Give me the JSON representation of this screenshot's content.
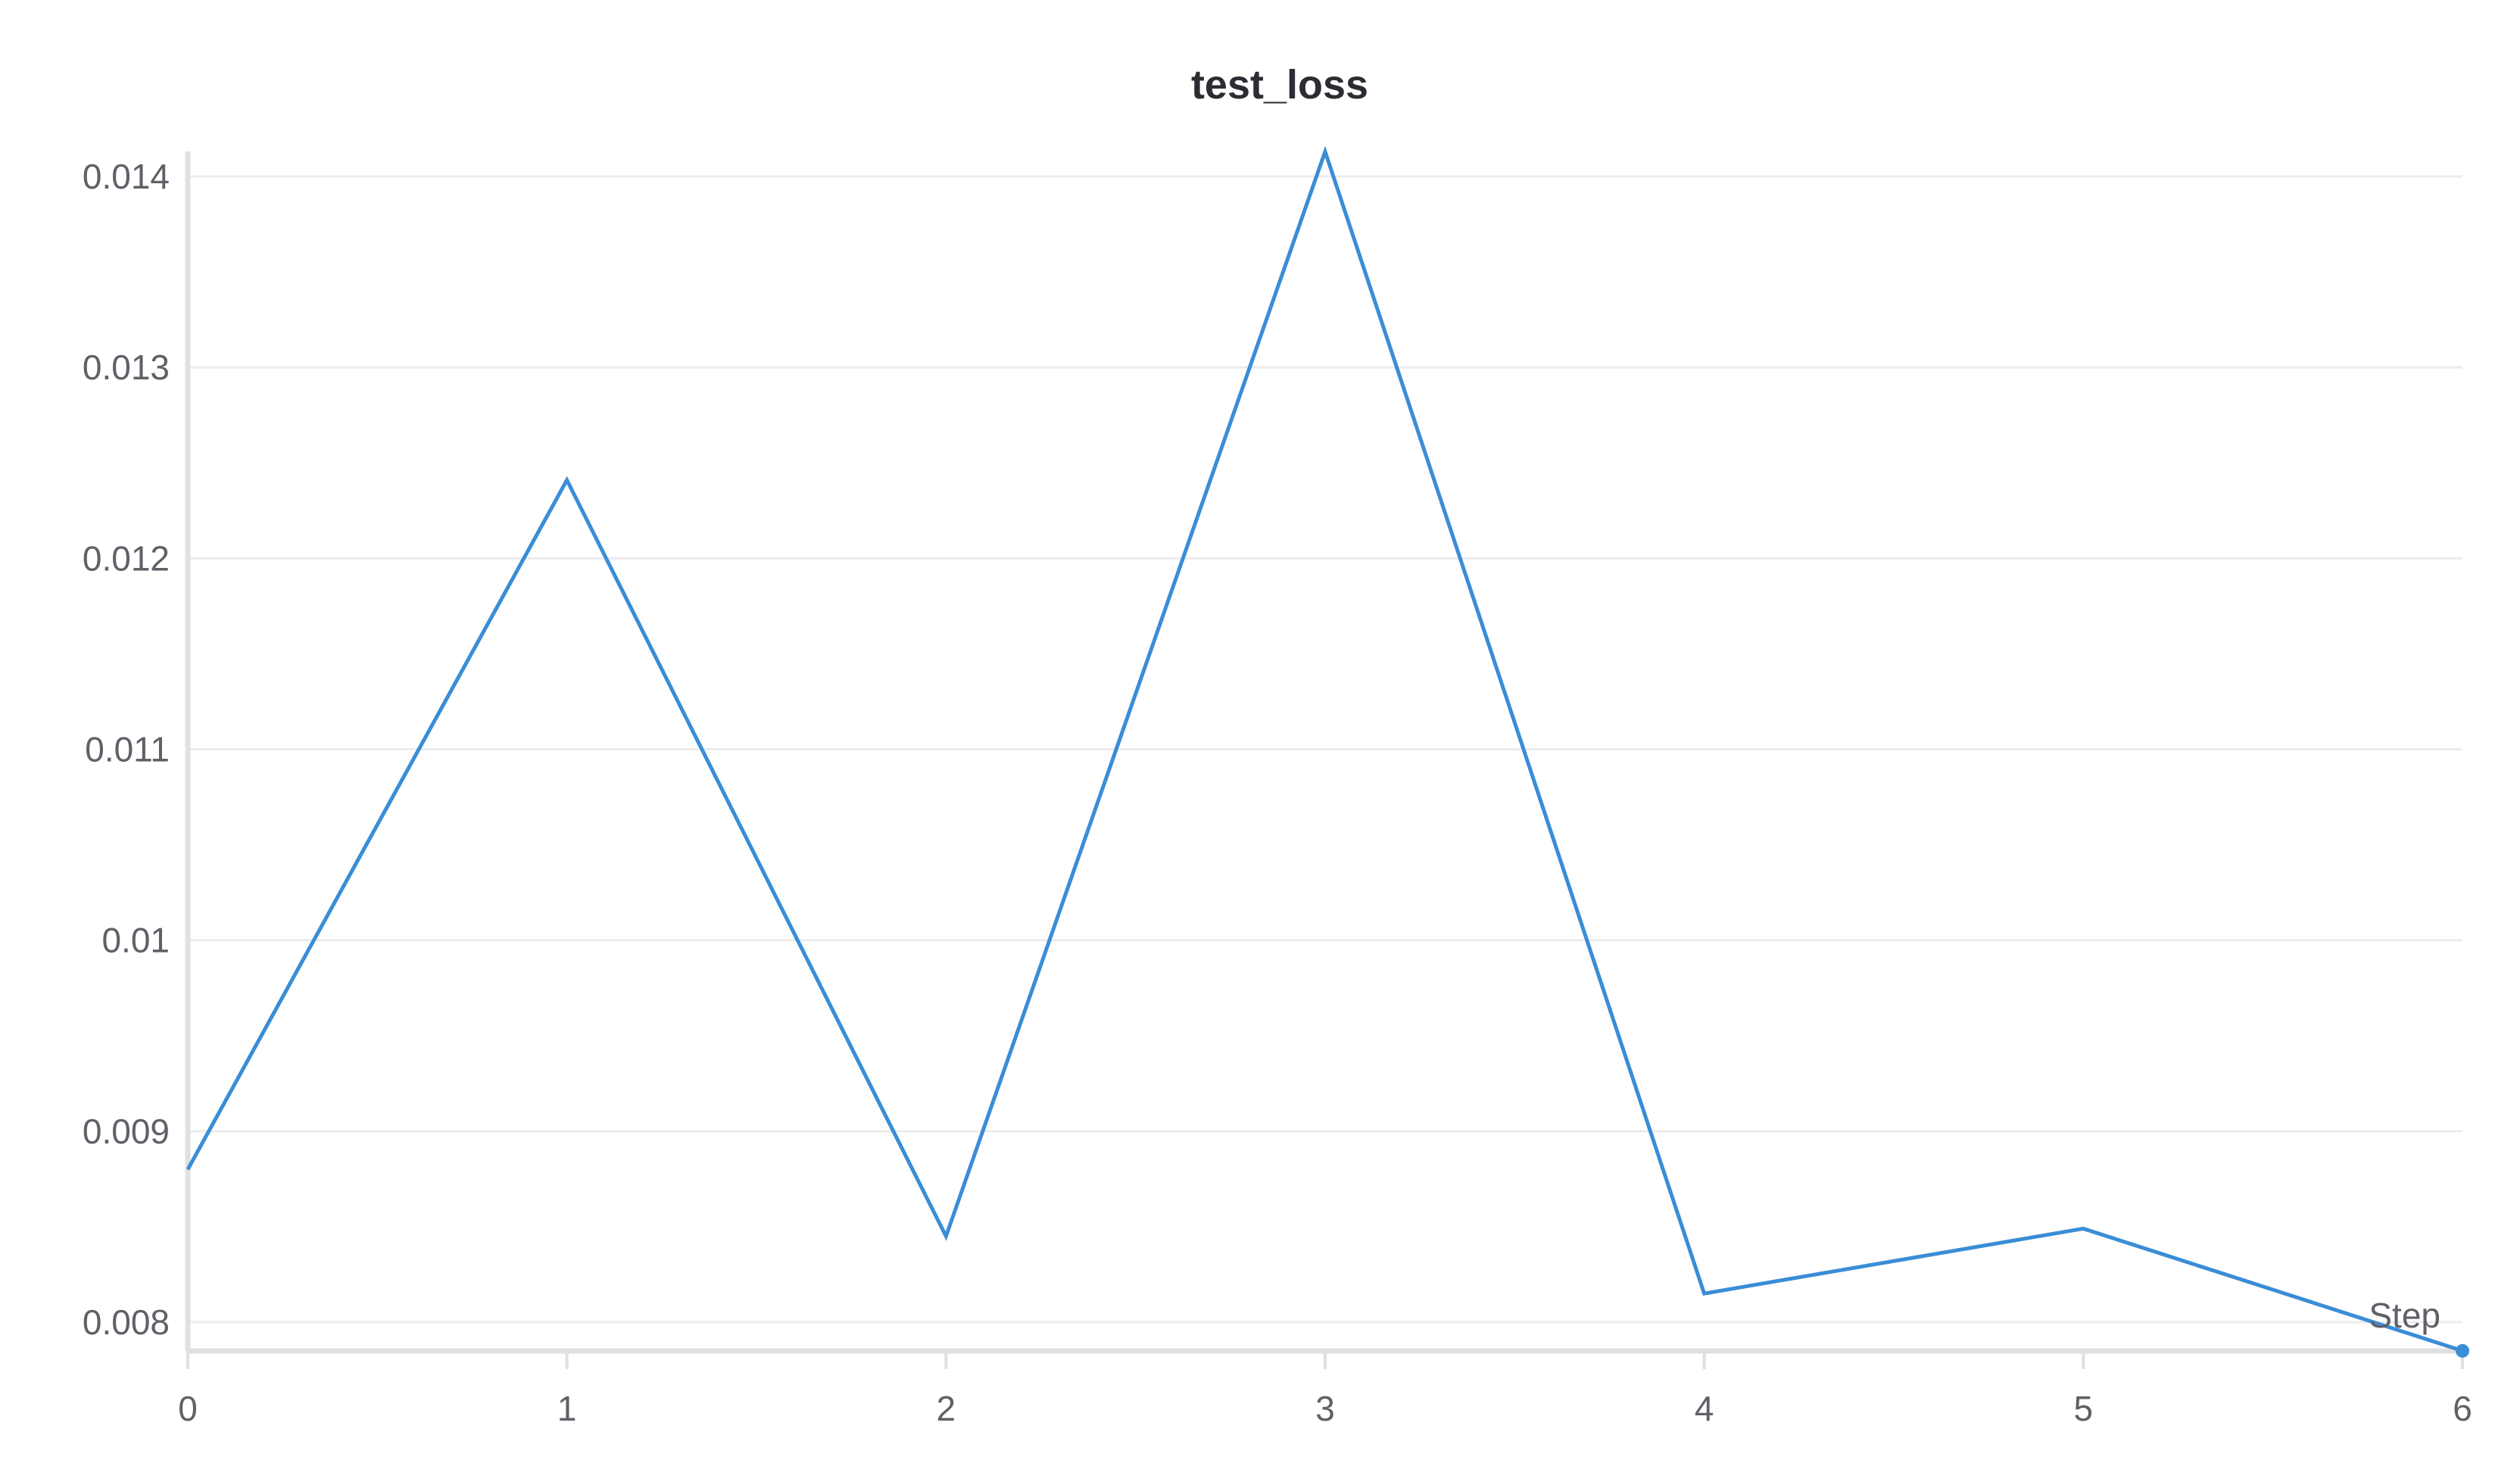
{
  "chart_data": {
    "type": "line",
    "title": "test_loss",
    "xlabel": "Step",
    "ylabel": "",
    "x": [
      0,
      1,
      2,
      3,
      4,
      5,
      6
    ],
    "x_ticks": [
      "0",
      "1",
      "2",
      "3",
      "4",
      "5",
      "6"
    ],
    "y_ticks": [
      {
        "value": 0.008,
        "label": "0.008"
      },
      {
        "value": 0.009,
        "label": "0.009"
      },
      {
        "value": 0.01,
        "label": "0.01"
      },
      {
        "value": 0.011,
        "label": "0.011"
      },
      {
        "value": 0.012,
        "label": "0.012"
      },
      {
        "value": 0.013,
        "label": "0.013"
      },
      {
        "value": 0.014,
        "label": "0.014"
      }
    ],
    "xlim": [
      0,
      6
    ],
    "ylim": [
      0.00785,
      0.01412
    ],
    "grid": true,
    "legend": "none",
    "series": [
      {
        "color": "#3a8dd6",
        "values": [
          0.0088,
          0.01241,
          0.00845,
          0.01413,
          0.00815,
          0.00849,
          0.00785
        ]
      }
    ],
    "colors": {
      "grid": "#ececee",
      "axis": "#e0e0e3",
      "text": "#5f6068",
      "title": "#2b2d33"
    }
  }
}
